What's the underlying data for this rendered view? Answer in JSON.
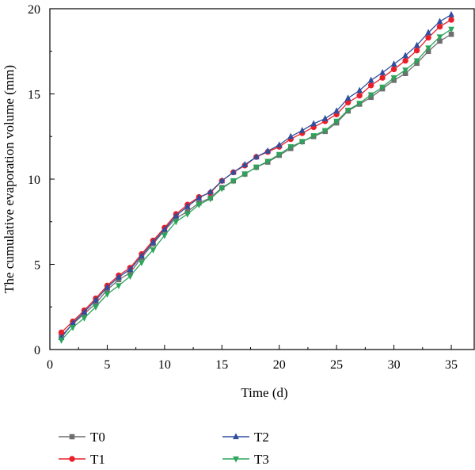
{
  "chart_data": {
    "type": "line",
    "title": "",
    "xlabel": "Time (d)",
    "ylabel": "The cumulative evaporation volume (mm)",
    "xlim": [
      0,
      37
    ],
    "ylim": [
      0,
      20
    ],
    "xticks": [
      0,
      5,
      10,
      15,
      20,
      25,
      30,
      35
    ],
    "yticks": [
      0,
      5,
      10,
      15,
      20
    ],
    "grid": false,
    "legend_position": "bottom",
    "x": [
      1,
      2,
      3,
      4,
      5,
      6,
      7,
      8,
      9,
      10,
      11,
      12,
      13,
      14,
      15,
      16,
      17,
      18,
      19,
      20,
      21,
      22,
      23,
      24,
      25,
      26,
      27,
      28,
      29,
      30,
      31,
      32,
      33,
      34,
      35
    ],
    "series": [
      {
        "name": "T0",
        "color": "#6e6e6e",
        "marker": "square",
        "values": [
          0.8,
          1.5,
          2.1,
          2.7,
          3.5,
          4.1,
          4.5,
          5.4,
          6.2,
          7.0,
          7.7,
          8.1,
          8.6,
          8.9,
          9.5,
          9.9,
          10.3,
          10.7,
          11.0,
          11.4,
          11.8,
          12.2,
          12.5,
          12.8,
          13.3,
          14.0,
          14.4,
          14.8,
          15.3,
          15.8,
          16.2,
          16.8,
          17.5,
          18.1,
          18.5
        ]
      },
      {
        "name": "T1",
        "color": "#e8202a",
        "marker": "circle",
        "values": [
          1.0,
          1.65,
          2.3,
          3.0,
          3.75,
          4.35,
          4.8,
          5.6,
          6.4,
          7.15,
          7.95,
          8.5,
          8.95,
          9.2,
          9.9,
          10.4,
          10.8,
          11.3,
          11.6,
          11.9,
          12.35,
          12.7,
          13.05,
          13.4,
          13.8,
          14.5,
          14.9,
          15.5,
          15.95,
          16.45,
          16.95,
          17.55,
          18.3,
          18.95,
          19.35
        ]
      },
      {
        "name": "T2",
        "color": "#2f4f9e",
        "marker": "triangle-up",
        "values": [
          0.7,
          1.55,
          2.2,
          2.9,
          3.65,
          4.25,
          4.7,
          5.5,
          6.3,
          7.05,
          7.85,
          8.4,
          8.9,
          9.25,
          9.9,
          10.4,
          10.85,
          11.3,
          11.65,
          12.0,
          12.5,
          12.85,
          13.25,
          13.55,
          14.0,
          14.75,
          15.2,
          15.8,
          16.25,
          16.75,
          17.25,
          17.85,
          18.6,
          19.25,
          19.65
        ]
      },
      {
        "name": "T3",
        "color": "#2aa55a",
        "marker": "triangle-down",
        "values": [
          0.55,
          1.3,
          1.85,
          2.5,
          3.25,
          3.75,
          4.3,
          5.1,
          5.85,
          6.7,
          7.5,
          7.95,
          8.5,
          8.85,
          9.45,
          9.9,
          10.3,
          10.7,
          11.05,
          11.45,
          11.9,
          12.2,
          12.55,
          12.85,
          13.4,
          14.05,
          14.45,
          14.95,
          15.4,
          15.95,
          16.4,
          16.95,
          17.7,
          18.35,
          18.8
        ]
      }
    ]
  }
}
